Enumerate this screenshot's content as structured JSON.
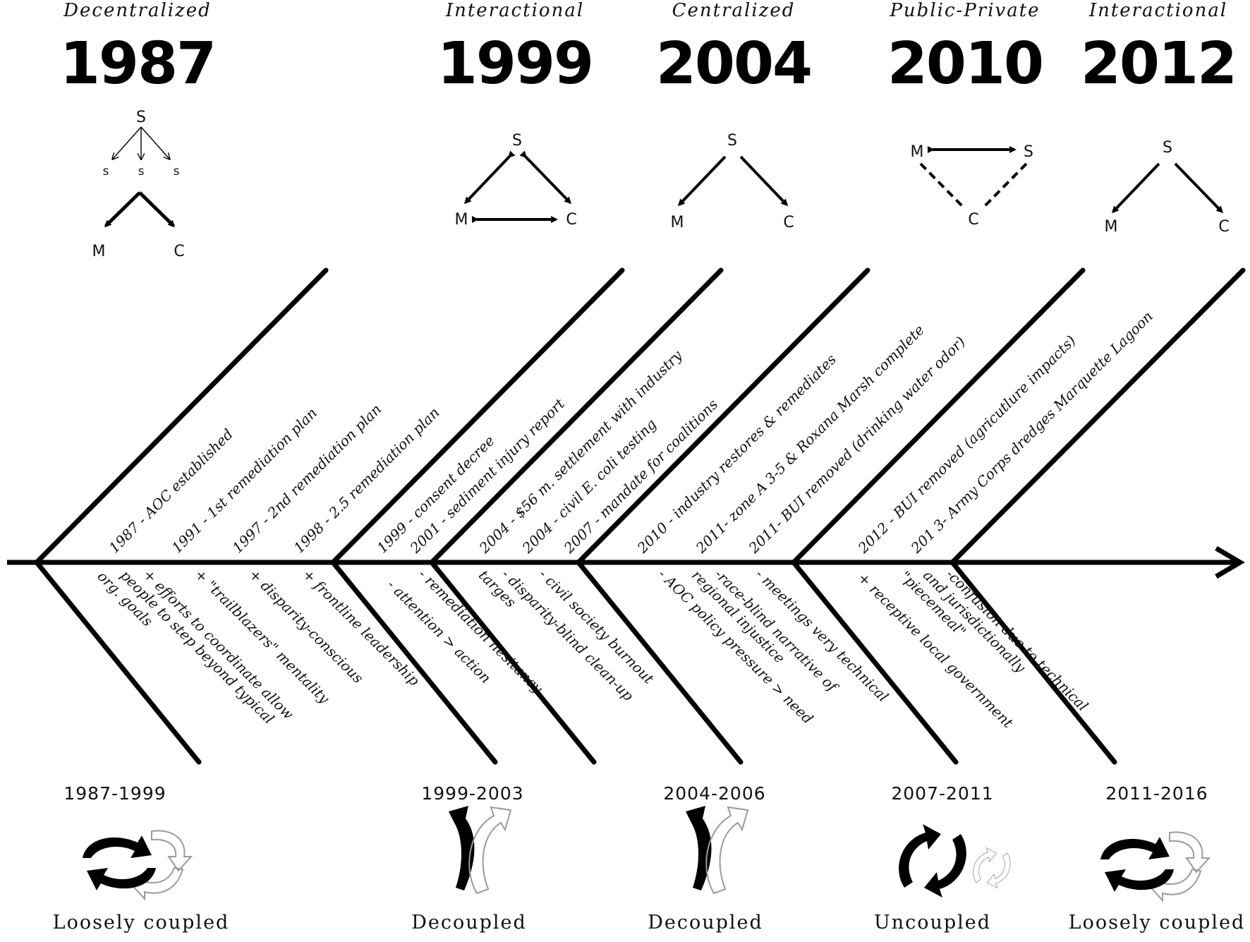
{
  "eras": [
    {
      "label": "Decentralized",
      "year": "1987"
    },
    {
      "label": "Interactional",
      "year": "1999"
    },
    {
      "label": "Centralized",
      "year": "2004"
    },
    {
      "label": "Public-Private",
      "year": "2010"
    },
    {
      "label": "Interactional",
      "year": "2012"
    }
  ],
  "nodes": {
    "state": "S",
    "sub_state": "s",
    "market": "M",
    "civil": "C"
  },
  "upper_events": [
    "1987 - AOC established",
    "1991 - 1st remediation plan",
    "1997 - 2nd remediation plan",
    "1998 - 2.5 remediation plan",
    "1999 - consent decree",
    "2001 - sediment injury report",
    "2004 - $56 m. settlement with industry",
    "2004 - civil E. coli testing",
    "2007 - mandate for coalitions",
    "2010 - industry restores & remediates",
    "2011- zone A 3-5 & Roxana Marsh complete",
    "2011- BUI removed (drinking water odor)",
    "2012 - BUI removed (agricutlure impacts)",
    "201 3- Army Corps dredges Marquette Lagoon"
  ],
  "lower_notes": [
    {
      "lines": [
        "+ efforts to coordinate allow",
        "people to step beyond typical",
        "org. goals"
      ]
    },
    {
      "lines": [
        "+ \"trailblazers\" mentality"
      ]
    },
    {
      "lines": [
        "+ disparity-conscious"
      ]
    },
    {
      "lines": [
        "+ frontline leadership"
      ]
    },
    {
      "lines": [
        "- attention > action"
      ]
    },
    {
      "lines": [
        "- remediation hesitancy"
      ]
    },
    {
      "lines": [
        "- disparity-blind clean-up",
        "targes"
      ]
    },
    {
      "lines": [
        "- civil society burnout"
      ]
    },
    {
      "lines": [
        "- AOC policy pressure > need"
      ]
    },
    {
      "lines": [
        "-race-blind narrative of",
        "regional injustice"
      ]
    },
    {
      "lines": [
        "- meetings very technical"
      ]
    },
    {
      "lines": [
        "+ receptive local government"
      ]
    },
    {
      "lines": [
        "-confusion due to technical",
        "and jurisdictionally",
        "\"piecemeal\""
      ]
    }
  ],
  "periods": [
    {
      "range": "1987-1999",
      "coupling": "Loosely coupled"
    },
    {
      "range": "1999-2003",
      "coupling": "Decoupled"
    },
    {
      "range": "2004-2006",
      "coupling": "Decoupled"
    },
    {
      "range": "2007-2011",
      "coupling": "Uncoupled"
    },
    {
      "range": "2011-2016",
      "coupling": "Loosely coupled"
    }
  ],
  "colors": {
    "ink": "#000000",
    "ghost": "#9a9a9a"
  },
  "icons": [
    "cycle-arrows-icon",
    "split-arrows-icon",
    "split-arrows-icon",
    "cycle-arrows-icon",
    "cycle-arrows-icon"
  ]
}
